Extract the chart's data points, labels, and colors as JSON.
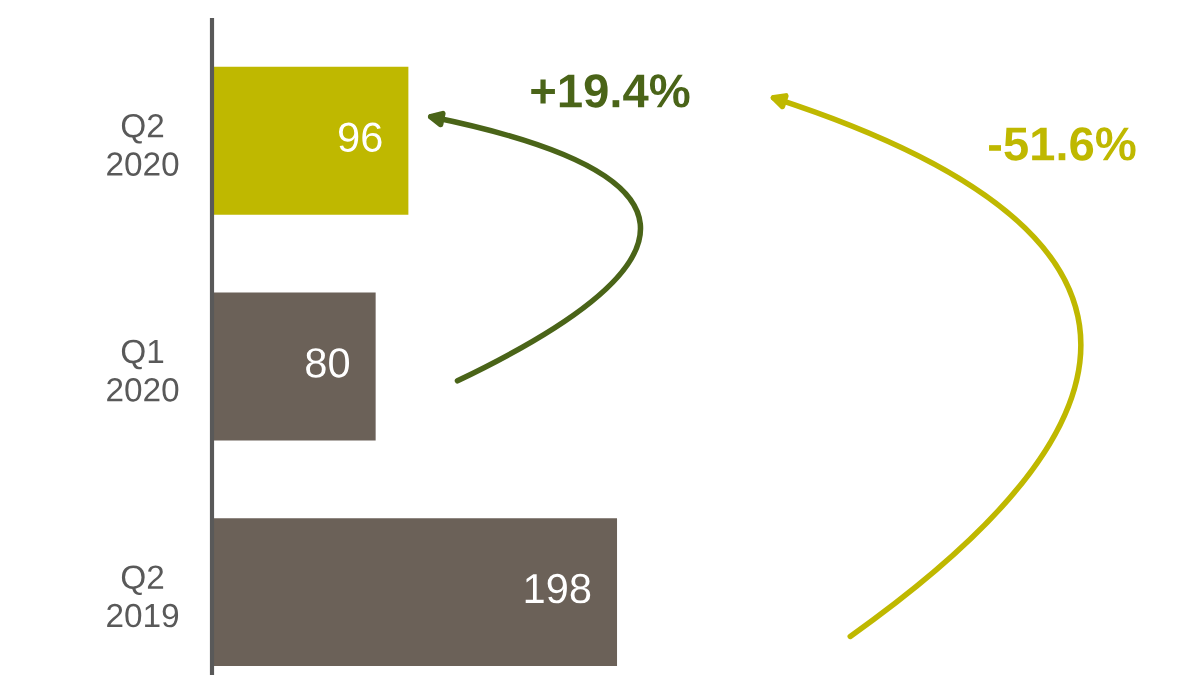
{
  "chart_data": {
    "type": "bar",
    "orientation": "horizontal",
    "categories": [
      "Q2\n2020",
      "Q1\n2020",
      "Q2\n2019"
    ],
    "values": [
      96,
      80,
      198
    ],
    "colors": [
      "#bfb800",
      "#6b6158",
      "#6b6158"
    ],
    "data_labels": true,
    "annotations": [
      "+19.4%",
      "-51.6%"
    ],
    "grid": false,
    "tick_labels": "y"
  }
}
